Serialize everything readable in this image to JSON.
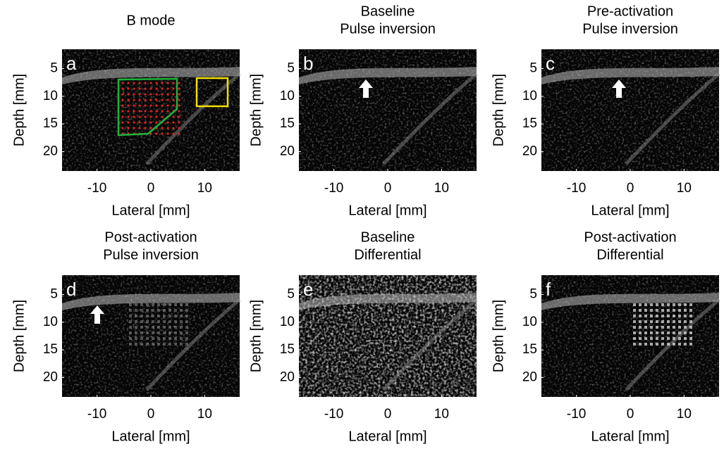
{
  "panels": [
    {
      "letter": "a",
      "title": [
        "B mode"
      ],
      "xlabel": "Lateral [mm]",
      "ylabel": "Depth [mm]",
      "xlim": [
        -16.5,
        16.5
      ],
      "ylim": [
        1.5,
        23.5
      ],
      "xticks": [
        -10,
        0,
        10
      ],
      "yticks": [
        5,
        10,
        15,
        20
      ]
    },
    {
      "letter": "b",
      "title": [
        "Baseline",
        "Pulse inversion"
      ],
      "xlabel": "Lateral [mm]",
      "ylabel": "Depth [mm]",
      "xlim": [
        -16.5,
        16.5
      ],
      "ylim": [
        1.5,
        23.5
      ],
      "xticks": [
        -10,
        0,
        10
      ],
      "yticks": [
        5,
        10,
        15,
        20
      ]
    },
    {
      "letter": "c",
      "title": [
        "Pre-activation",
        "Pulse inversion"
      ],
      "xlabel": "Lateral [mm]",
      "ylabel": "Depth [mm]",
      "xlim": [
        -16.5,
        16.5
      ],
      "ylim": [
        1.5,
        23.5
      ],
      "xticks": [
        -10,
        0,
        10
      ],
      "yticks": [
        5,
        10,
        15,
        20
      ]
    },
    {
      "letter": "d",
      "title": [
        "Post-activation",
        "Pulse inversion"
      ],
      "xlabel": "Lateral [mm]",
      "ylabel": "Depth [mm]",
      "xlim": [
        -16.5,
        16.5
      ],
      "ylim": [
        1.5,
        23.5
      ],
      "xticks": [
        -10,
        0,
        10
      ],
      "yticks": [
        5,
        10,
        15,
        20
      ]
    },
    {
      "letter": "e",
      "title": [
        "Baseline",
        "Differential"
      ],
      "xlabel": "Lateral [mm]",
      "ylabel": "Depth [mm]",
      "xlim": [
        -16.5,
        16.5
      ],
      "ylim": [
        1.5,
        23.5
      ],
      "xticks": [
        -10,
        0,
        10
      ],
      "yticks": [
        5,
        10,
        15,
        20
      ]
    },
    {
      "letter": "f",
      "title": [
        "Post-activation",
        "Differential"
      ],
      "xlabel": "Lateral [mm]",
      "ylabel": "Depth [mm]",
      "xlim": [
        -16.5,
        16.5
      ],
      "ylim": [
        1.5,
        23.5
      ],
      "xticks": [
        -10,
        0,
        10
      ],
      "yticks": [
        5,
        10,
        15,
        20
      ]
    }
  ]
}
